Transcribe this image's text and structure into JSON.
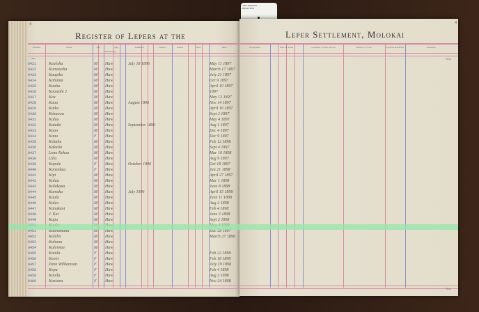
{
  "book": {
    "left_title": "Register of Lepers at the",
    "right_title": "Leper Settlement, Molokai",
    "left_page_number": "4",
    "right_page_number": "4",
    "paper_color": "#e3ddcc",
    "rule_color": "#d98aa6",
    "column_line_color": "#8f8fd0",
    "highlight_color": "#96e6aa"
  },
  "archive_card": {
    "line1": "340 LEPERS'S",
    "line2": "REGISTER"
  },
  "left_headers": [
    "Number",
    "Name",
    "Sex",
    "Nationality",
    "Age",
    "Admitted",
    "District",
    "Island",
    "Date",
    "Died"
  ],
  "right_headers": [
    "Occupation",
    "Date of Visits",
    "Condition at First Arrival",
    "History of Case",
    "Leprous Relatives",
    "Remarks"
  ],
  "carried_label": "1896",
  "total_label": "Total",
  "rows": [
    {
      "num": "6421",
      "name": "Kealoha",
      "sex": "M",
      "nat": "Haw",
      "adm": "July 18 1896",
      "date": "May 11 1897"
    },
    {
      "num": "6422",
      "name": "Kamauoha",
      "sex": "M",
      "nat": "Haw",
      "adm": "",
      "date": "March 17 1897"
    },
    {
      "num": "6423",
      "name": "Kaupiko",
      "sex": "M",
      "nat": "Haw",
      "adm": "",
      "date": "July 21 1897"
    },
    {
      "num": "6424",
      "name": "Kahanai",
      "sex": "M",
      "nat": "Haw",
      "adm": "",
      "date": "Oct 9 1897"
    },
    {
      "num": "6425",
      "name": "Kaaha",
      "sex": "M",
      "nat": "Haw",
      "adm": "",
      "date": "April 10 1897"
    },
    {
      "num": "6426",
      "name": "Kauwahi 2",
      "sex": "M",
      "nat": "Haw",
      "adm": "",
      "date": "1897"
    },
    {
      "num": "6427",
      "name": "Kea",
      "sex": "M",
      "nat": "Haw",
      "adm": "",
      "date": "May 12 1897"
    },
    {
      "num": "6428",
      "name": "Kaua",
      "sex": "M",
      "nat": "Haw",
      "adm": "August 1896",
      "date": "Nov 14 1897"
    },
    {
      "num": "6429",
      "name": "Kaiko",
      "sex": "M",
      "nat": "Haw",
      "adm": "",
      "date": "April 16 1897"
    },
    {
      "num": "6430",
      "name": "Kekuewa",
      "sex": "M",
      "nat": "Haw",
      "adm": "",
      "date": "Sept 2 1897"
    },
    {
      "num": "6431",
      "name": "Kalua",
      "sex": "M",
      "nat": "Haw",
      "adm": "",
      "date": "May 4 1897"
    },
    {
      "num": "6432",
      "name": "Kaiaiki",
      "sex": "M",
      "nat": "Haw",
      "adm": "September 1896",
      "date": "Aug 1 1897"
    },
    {
      "num": "6433",
      "name": "Kaao",
      "sex": "M",
      "nat": "Haw",
      "adm": "",
      "date": "Dec 4 1897"
    },
    {
      "num": "6434",
      "name": "Kaau",
      "sex": "F",
      "nat": "Haw",
      "adm": "",
      "date": "Dec 9 1897"
    },
    {
      "num": "6435",
      "name": "Kekahu",
      "sex": "M",
      "nat": "Haw",
      "adm": "",
      "date": "Feb 12 1898"
    },
    {
      "num": "6436",
      "name": "Kakalia",
      "sex": "M",
      "nat": "Haw",
      "adm": "",
      "date": "Sept 4 1897"
    },
    {
      "num": "6437",
      "name": "Lono Kekoa",
      "sex": "M",
      "nat": "Haw",
      "adm": "",
      "date": "Mar 10 1898"
    },
    {
      "num": "6438",
      "name": "Lilia",
      "sex": "M",
      "nat": "Haw",
      "adm": "",
      "date": "Aug 9 1897"
    },
    {
      "num": "6439",
      "name": "Kapule",
      "sex": "F",
      "nat": "Haw",
      "adm": "October 1896",
      "date": "Oct 18 1897"
    },
    {
      "num": "6440",
      "name": "Kaneakua",
      "sex": "F",
      "nat": "Haw",
      "adm": "",
      "date": "Jan 21 1898"
    },
    {
      "num": "6441",
      "name": "Kipi",
      "sex": "M",
      "nat": "Haw",
      "adm": "",
      "date": "April 27 1897"
    },
    {
      "num": "6442",
      "name": "Kalua",
      "sex": "M",
      "nat": "Haw",
      "adm": "",
      "date": "Mar 1 1898"
    },
    {
      "num": "6443",
      "name": "Kalakaua",
      "sex": "M",
      "nat": "Haw",
      "adm": "",
      "date": "June 8 1898"
    },
    {
      "num": "6444",
      "name": "Kamaka",
      "sex": "M",
      "nat": "Haw",
      "adm": "July 1896",
      "date": "April 15 1898"
    },
    {
      "num": "6445",
      "name": "Kaala",
      "sex": "M",
      "nat": "Haw",
      "adm": "",
      "date": "June 11 1898"
    },
    {
      "num": "6446",
      "name": "Kaleo",
      "sex": "M",
      "nat": "Haw",
      "adm": "",
      "date": "Aug 2 1898"
    },
    {
      "num": "6447",
      "name": "Kanakaoi",
      "sex": "M",
      "nat": "Haw",
      "adm": "",
      "date": "Feb 4 1898"
    },
    {
      "num": "6448",
      "name": "J. Kai",
      "sex": "M",
      "nat": "Haw",
      "adm": "",
      "date": "June 3 1898"
    },
    {
      "num": "6449",
      "name": "Kapu",
      "sex": "M",
      "nat": "Haw",
      "adm": "",
      "date": "Sept 2 1898"
    },
    {
      "num": "6450",
      "name": "Kauka",
      "sex": "M",
      "nat": "Haw",
      "adm": "",
      "date": "May 4 1898"
    },
    {
      "num": "6451",
      "name": "Kaahumanu",
      "sex": "M",
      "nat": "Haw",
      "adm": "",
      "date": "Dec 28 1897"
    },
    {
      "num": "6452",
      "name": "Kaleha",
      "sex": "M",
      "nat": "Haw",
      "adm": "",
      "date": "March 27 1898"
    },
    {
      "num": "6453",
      "name": "Kahana",
      "sex": "M",
      "nat": "Haw",
      "adm": "",
      "date": ""
    },
    {
      "num": "6454",
      "name": "Kaleimoe",
      "sex": "M",
      "nat": "Haw",
      "adm": "",
      "date": ""
    },
    {
      "num": "6455",
      "name": "Kaiula",
      "sex": "F",
      "nat": "Haw",
      "adm": "",
      "date": "Feb 22 1898"
    },
    {
      "num": "6456",
      "name": "Keoni",
      "sex": "F",
      "nat": "Haw",
      "adm": "",
      "date": "Feb 18 1898"
    },
    {
      "num": "6457",
      "name": "Pane Williamson",
      "sex": "F",
      "nat": "Haw",
      "adm": "",
      "date": "July 19 1898"
    },
    {
      "num": "6458",
      "name": "Kepa",
      "sex": "F",
      "nat": "Haw",
      "adm": "",
      "date": "Feb 4 1898"
    },
    {
      "num": "6459",
      "name": "Kauila",
      "sex": "F",
      "nat": "Haw",
      "adm": "",
      "date": "Aug 3 1898"
    },
    {
      "num": "6460",
      "name": "Keaiana",
      "sex": "F",
      "nat": "Haw",
      "adm": "",
      "date": "Nov 24 1898"
    }
  ]
}
